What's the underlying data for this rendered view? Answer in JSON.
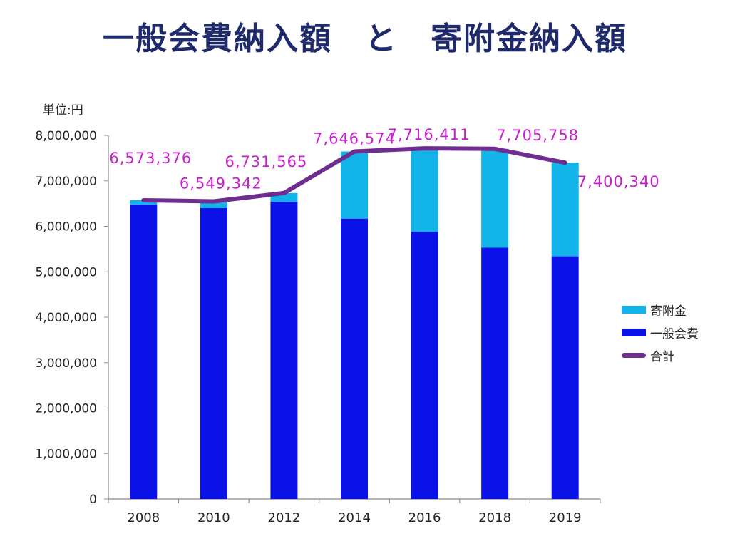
{
  "title": "一般会費納入額　と　寄附金納入額",
  "unit_label": "単位:円",
  "colors": {
    "donation": "#12b3e8",
    "membership": "#0a12e8",
    "total": "#6e2d8f",
    "total_label": "#c81ecf",
    "axis": "#888888"
  },
  "chart_data": {
    "type": "bar",
    "stacked": true,
    "categories": [
      "2008",
      "2010",
      "2012",
      "2014",
      "2016",
      "2018",
      "2019"
    ],
    "series": [
      {
        "name": "一般会費",
        "values": [
          6480000,
          6400000,
          6540000,
          6170000,
          5880000,
          5530000,
          5340000
        ]
      },
      {
        "name": "寄附金",
        "values": [
          93376,
          149342,
          191565,
          1476574,
          1836411,
          2175758,
          2060340
        ]
      },
      {
        "name": "合計",
        "type": "line",
        "values": [
          6573376,
          6549342,
          6731565,
          7646574,
          7716411,
          7705758,
          7400340
        ]
      }
    ],
    "total_labels": [
      "6,573,376",
      "6,549,342",
      "6,731,565",
      "7,646,574",
      "7,716,411",
      "7,705,758",
      "7,400,340"
    ],
    "yticks": [
      "0",
      "1,000,000",
      "2,000,000",
      "3,000,000",
      "4,000,000",
      "5,000,000",
      "6,000,000",
      "7,000,000",
      "8,000,000"
    ],
    "ylim": [
      0,
      8000000
    ],
    "legend_position": "right",
    "grid": false
  }
}
